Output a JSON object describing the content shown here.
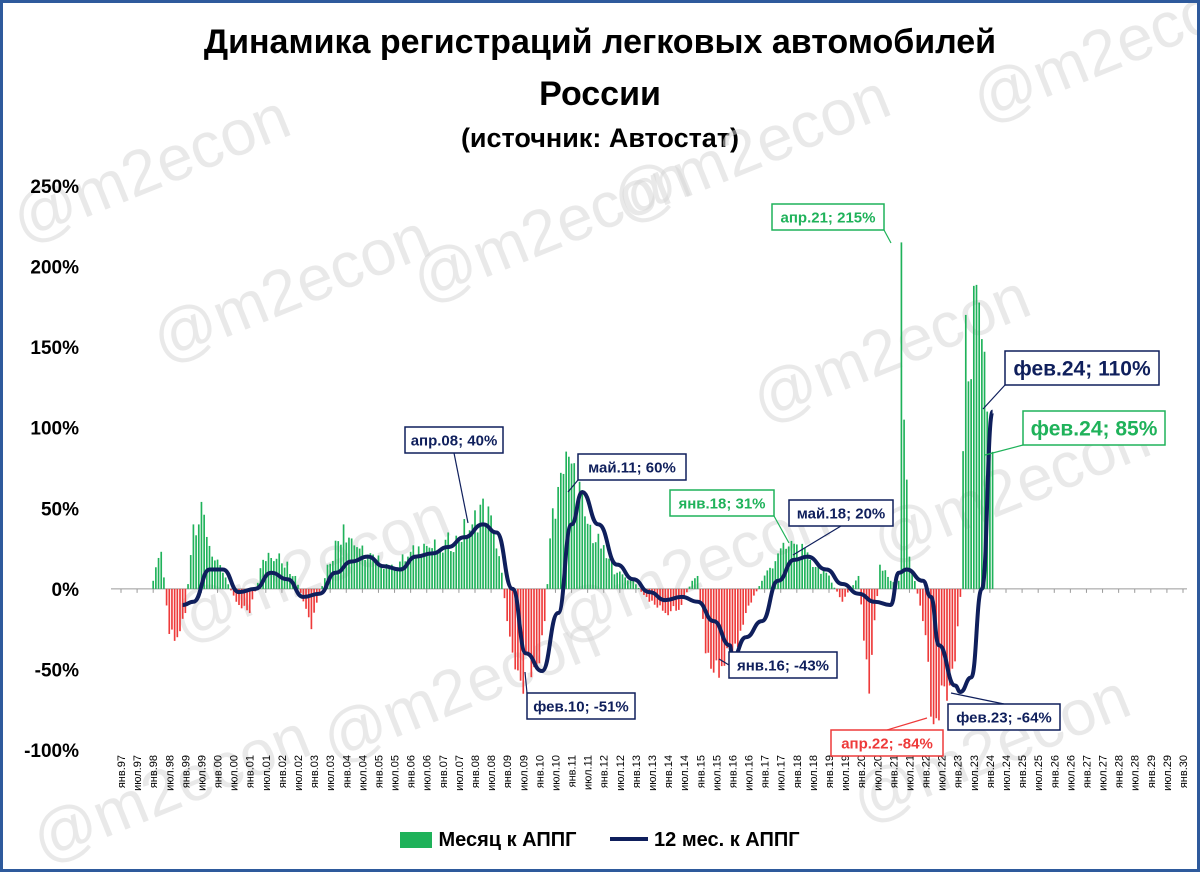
{
  "header": {
    "title_line1": "Динамика регистраций легковых автомобилей",
    "title_line2": "России",
    "subtitle": "(источник: Автостат)"
  },
  "watermark": "@m2econ",
  "colors": {
    "positive_bar": "#1fb25a",
    "negative_bar": "#ee3a3a",
    "line": "#0f1f5c",
    "frame": "#2e5a9c"
  },
  "chart_data": {
    "type": "bar",
    "ylim": [
      -100,
      250
    ],
    "ytick_values": [
      -100,
      -50,
      0,
      50,
      100,
      150,
      200,
      250
    ],
    "ytick_labels": [
      "-100%",
      "-50%",
      "0%",
      "50%",
      "100%",
      "150%",
      "200%",
      "250%"
    ],
    "x_tick_labels": [
      "янв.97",
      "июл.97",
      "янв.98",
      "июл.98",
      "янв.99",
      "июл.99",
      "янв.00",
      "июл.00",
      "янв.01",
      "июл.01",
      "янв.02",
      "июл.02",
      "янв.03",
      "июл.03",
      "янв.04",
      "июл.04",
      "янв.05",
      "июл.05",
      "янв.06",
      "июл.06",
      "янв.07",
      "июл.07",
      "янв.08",
      "июл.08",
      "янв.09",
      "июл.09",
      "янв.10",
      "июл.10",
      "янв.11",
      "июл.11",
      "янв.12",
      "июл.12",
      "янв.13",
      "июл.13",
      "янв.14",
      "июл.14",
      "янв.15",
      "июл.15",
      "янв.16",
      "июл.16",
      "янв.17",
      "июл.17",
      "янв.18",
      "июл.18",
      "янв.19",
      "июл.19",
      "янв.20",
      "июл.20",
      "янв.21",
      "июл.21",
      "янв.22",
      "июл.22",
      "янв.23",
      "июл.23",
      "янв.24",
      "июл.24",
      "янв.25",
      "июл.25",
      "янв.26",
      "июл.26",
      "янв.27",
      "июл.27",
      "янв.28",
      "июл.28",
      "янв.29",
      "июл.29",
      "янв.30"
    ],
    "x_start": "1997-01",
    "series": [
      {
        "name": "Месяц к АППГ",
        "type": "bar",
        "anchors": [
          [
            "1998-01",
            5
          ],
          [
            "1998-04",
            23
          ],
          [
            "1998-07",
            -28
          ],
          [
            "1998-10",
            -30
          ],
          [
            "1999-01",
            -15
          ],
          [
            "1999-04",
            40
          ],
          [
            "1999-08",
            46
          ],
          [
            "1999-11",
            20
          ],
          [
            "2000-03",
            10
          ],
          [
            "2000-08",
            -8
          ],
          [
            "2001-01",
            -15
          ],
          [
            "2001-06",
            18
          ],
          [
            "2001-12",
            22
          ],
          [
            "2002-06",
            8
          ],
          [
            "2002-12",
            -25
          ],
          [
            "2003-06",
            15
          ],
          [
            "2003-12",
            40
          ],
          [
            "2004-06",
            25
          ],
          [
            "2004-12",
            18
          ],
          [
            "2005-06",
            15
          ],
          [
            "2005-12",
            20
          ],
          [
            "2006-06",
            28
          ],
          [
            "2006-12",
            25
          ],
          [
            "2007-06",
            33
          ],
          [
            "2007-12",
            40
          ],
          [
            "2008-04",
            56
          ],
          [
            "2008-08",
            35
          ],
          [
            "2008-11",
            10
          ],
          [
            "2009-01",
            -20
          ],
          [
            "2009-06",
            -57
          ],
          [
            "2009-12",
            -48
          ],
          [
            "2010-03",
            -20
          ],
          [
            "2010-06",
            50
          ],
          [
            "2010-09",
            72
          ],
          [
            "2010-12",
            82
          ],
          [
            "2011-02",
            78
          ],
          [
            "2011-06",
            45
          ],
          [
            "2011-12",
            25
          ],
          [
            "2012-06",
            10
          ],
          [
            "2012-12",
            5
          ],
          [
            "2013-06",
            -8
          ],
          [
            "2013-12",
            -15
          ],
          [
            "2014-06",
            -10
          ],
          [
            "2014-10",
            5
          ],
          [
            "2014-12",
            8
          ],
          [
            "2015-03",
            -40
          ],
          [
            "2015-06",
            -52
          ],
          [
            "2015-12",
            -48
          ],
          [
            "2016-06",
            -15
          ],
          [
            "2016-12",
            5
          ],
          [
            "2017-06",
            22
          ],
          [
            "2017-12",
            28
          ],
          [
            "2018-06",
            18
          ],
          [
            "2018-12",
            10
          ],
          [
            "2019-06",
            -8
          ],
          [
            "2019-12",
            8
          ],
          [
            "2020-04",
            -65
          ],
          [
            "2020-08",
            15
          ],
          [
            "2020-12",
            5
          ],
          [
            "2021-03",
            5
          ],
          [
            "2021-04",
            215
          ],
          [
            "2021-05",
            105
          ],
          [
            "2021-07",
            20
          ],
          [
            "2021-12",
            -20
          ],
          [
            "2022-04",
            -84
          ],
          [
            "2022-10",
            -60
          ],
          [
            "2022-12",
            -45
          ],
          [
            "2023-02",
            -5
          ],
          [
            "2023-04",
            170
          ],
          [
            "2023-10",
            155
          ],
          [
            "2023-12",
            110
          ],
          [
            "2024-02",
            85
          ]
        ]
      },
      {
        "name": "12 мес. к АППГ",
        "type": "line",
        "points": [
          [
            "1998-12",
            -10
          ],
          [
            "1999-04",
            -8
          ],
          [
            "1999-10",
            12
          ],
          [
            "2000-03",
            12
          ],
          [
            "2000-09",
            -2
          ],
          [
            "2001-03",
            0
          ],
          [
            "2001-09",
            10
          ],
          [
            "2002-03",
            6
          ],
          [
            "2002-09",
            -5
          ],
          [
            "2003-03",
            -3
          ],
          [
            "2003-09",
            10
          ],
          [
            "2004-03",
            17
          ],
          [
            "2004-09",
            20
          ],
          [
            "2005-03",
            14
          ],
          [
            "2005-09",
            12
          ],
          [
            "2006-03",
            20
          ],
          [
            "2006-09",
            22
          ],
          [
            "2007-03",
            26
          ],
          [
            "2007-09",
            32
          ],
          [
            "2008-04",
            40
          ],
          [
            "2008-09",
            35
          ],
          [
            "2009-03",
            0
          ],
          [
            "2009-08",
            -40
          ],
          [
            "2010-02",
            -51
          ],
          [
            "2010-08",
            -15
          ],
          [
            "2011-01",
            40
          ],
          [
            "2011-05",
            60
          ],
          [
            "2011-11",
            40
          ],
          [
            "2012-06",
            15
          ],
          [
            "2012-12",
            6
          ],
          [
            "2013-06",
            -2
          ],
          [
            "2013-12",
            -7
          ],
          [
            "2014-06",
            -5
          ],
          [
            "2014-12",
            -8
          ],
          [
            "2015-06",
            -20
          ],
          [
            "2015-12",
            -35
          ],
          [
            "2016-01",
            -43
          ],
          [
            "2016-06",
            -30
          ],
          [
            "2016-12",
            -20
          ],
          [
            "2017-06",
            5
          ],
          [
            "2017-12",
            18
          ],
          [
            "2018-05",
            20
          ],
          [
            "2018-12",
            12
          ],
          [
            "2019-06",
            3
          ],
          [
            "2019-12",
            -3
          ],
          [
            "2020-06",
            -8
          ],
          [
            "2020-12",
            -10
          ],
          [
            "2021-03",
            10
          ],
          [
            "2021-06",
            12
          ],
          [
            "2021-12",
            5
          ],
          [
            "2022-03",
            -5
          ],
          [
            "2022-06",
            -35
          ],
          [
            "2022-12",
            -60
          ],
          [
            "2023-02",
            -64
          ],
          [
            "2023-06",
            -55
          ],
          [
            "2023-10",
            0
          ],
          [
            "2024-02",
            110
          ]
        ]
      }
    ],
    "annotations": [
      {
        "text": "апр.08; 40%",
        "color": "#0f1f5c"
      },
      {
        "text": "фев.10; -51%",
        "color": "#0f1f5c"
      },
      {
        "text": "май.11; 60%",
        "color": "#0f1f5c"
      },
      {
        "text": "янв.16; -43%",
        "color": "#0f1f5c"
      },
      {
        "text": "янв.18; 31%",
        "color": "#1fb25a"
      },
      {
        "text": "май.18; 20%",
        "color": "#0f1f5c"
      },
      {
        "text": "апр.21; 215%",
        "color": "#1fb25a"
      },
      {
        "text": "апр.22; -84%",
        "color": "#ee3a3a"
      },
      {
        "text": "фев.23; -64%",
        "color": "#0f1f5c"
      },
      {
        "text": "фев.24; 110%",
        "color": "#0f1f5c"
      },
      {
        "text": "фев.24; 85%",
        "color": "#1fb25a"
      }
    ]
  },
  "legend": {
    "bars_label": "Месяц к АППГ",
    "line_label": "12 мес. к АППГ"
  }
}
